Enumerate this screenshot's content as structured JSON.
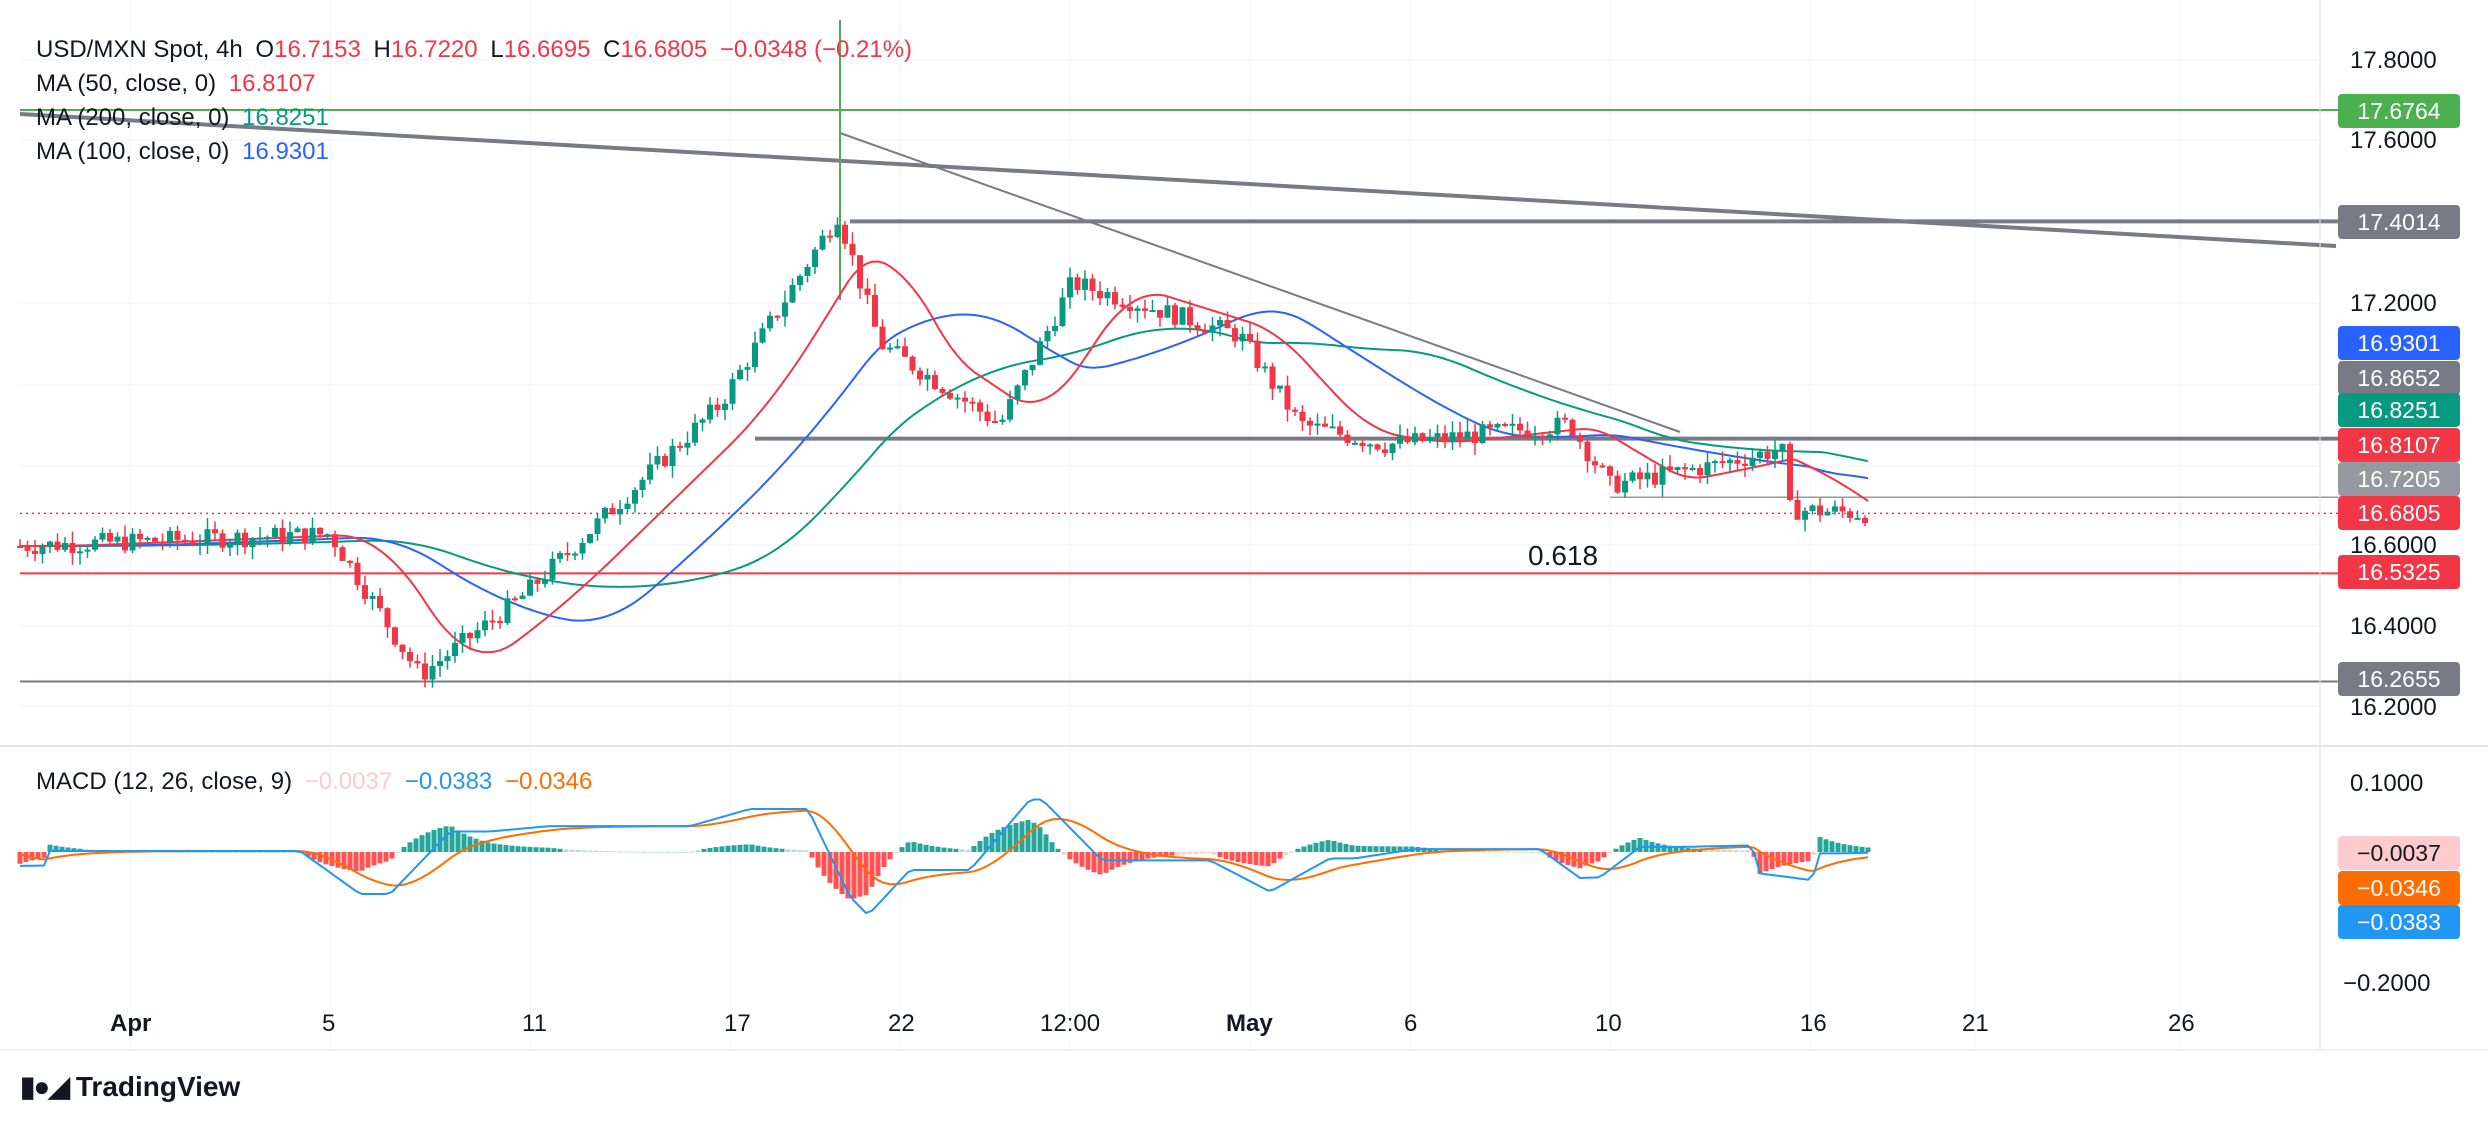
{
  "header": {
    "symbol": "USD/MXN Spot, 4h",
    "o_label": "O",
    "o_value": "16.7153",
    "h_label": "H",
    "h_value": "16.7220",
    "l_label": "L",
    "l_value": "16.6695",
    "c_label": "C",
    "c_value": "16.6805",
    "change": "−0.0348 (−0.21%)"
  },
  "indicators": {
    "ma50": {
      "label": "MA (50, close, 0)",
      "value": "16.8107",
      "color": "#f23645"
    },
    "ma200": {
      "label": "MA (200, close, 0)",
      "value": "16.8251",
      "color": "#089981"
    },
    "ma100": {
      "label": "MA (100, close, 0)",
      "value": "16.9301",
      "color": "#2962ff"
    }
  },
  "macd_legend": {
    "label": "MACD (12, 26, close, 9)",
    "hist": "−0.0037",
    "macd": "−0.0383",
    "signal": "−0.0346"
  },
  "price_axis": [
    "17.8000",
    "17.6000",
    "17.2000",
    "16.6000",
    "16.4000",
    "16.2000"
  ],
  "macd_axis": [
    "0.1000",
    "−0.2000"
  ],
  "time_axis": [
    "Apr",
    "5",
    "11",
    "17",
    "22",
    "12:00",
    "May",
    "6",
    "10",
    "16",
    "21",
    "26"
  ],
  "price_tags": [
    {
      "value": "17.6764",
      "color": "#4caf50"
    },
    {
      "value": "17.4014",
      "color": "#787b86"
    },
    {
      "value": "16.9301",
      "color": "#2962ff"
    },
    {
      "value": "16.8652",
      "color": "#787b86"
    },
    {
      "value": "16.8251",
      "color": "#089981"
    },
    {
      "value": "16.8107",
      "color": "#f23645"
    },
    {
      "value": "16.7205",
      "color": "#9598a1"
    },
    {
      "value": "16.6805",
      "color": "#f23645"
    },
    {
      "value": "16.5325",
      "color": "#f23645"
    },
    {
      "value": "16.2655",
      "color": "#787b86"
    }
  ],
  "macd_tags": [
    {
      "value": "−0.0037",
      "color": "#fccbcd",
      "text_color": "#131722"
    },
    {
      "value": "−0.0346",
      "color": "#ff6d00",
      "text_color": "#ffffff"
    },
    {
      "value": "−0.0383",
      "color": "#2196f3",
      "text_color": "#ffffff"
    }
  ],
  "fib_label": "0.618",
  "logo_text": "TradingView",
  "chart_data": {
    "type": "candlestick",
    "title": "USD/MXN Spot, 4h",
    "ylim": [
      16.2,
      17.9
    ],
    "levels": [
      17.6764,
      17.4014,
      16.8652,
      16.7205,
      16.5325,
      16.2655
    ],
    "anchors": [
      {
        "date": "Apr",
        "price": 16.6
      },
      {
        "date": "5",
        "price": 16.63
      },
      {
        "date": "8",
        "price": 16.28
      },
      {
        "date": "11",
        "price": 16.47
      },
      {
        "date": "17",
        "price": 16.95
      },
      {
        "date": "19",
        "price": 17.42
      },
      {
        "date": "22",
        "price": 17.1
      },
      {
        "date": "25",
        "price": 16.9
      },
      {
        "date": "12:00",
        "price": 17.25
      },
      {
        "date": "May",
        "price": 17.12
      },
      {
        "date": "3",
        "price": 16.9
      },
      {
        "date": "6",
        "price": 16.85
      },
      {
        "date": "9",
        "price": 16.9
      },
      {
        "date": "10",
        "price": 16.75
      },
      {
        "date": "13",
        "price": 16.8
      },
      {
        "date": "15",
        "price": 16.84
      },
      {
        "date": "16",
        "price": 16.69
      },
      {
        "date": "17",
        "price": 16.68
      }
    ],
    "series": [
      {
        "name": "MA (50, close, 0)",
        "last": 16.8107
      },
      {
        "name": "MA (200, close, 0)",
        "last": 16.8251
      },
      {
        "name": "MA (100, close, 0)",
        "last": 16.9301
      }
    ]
  }
}
